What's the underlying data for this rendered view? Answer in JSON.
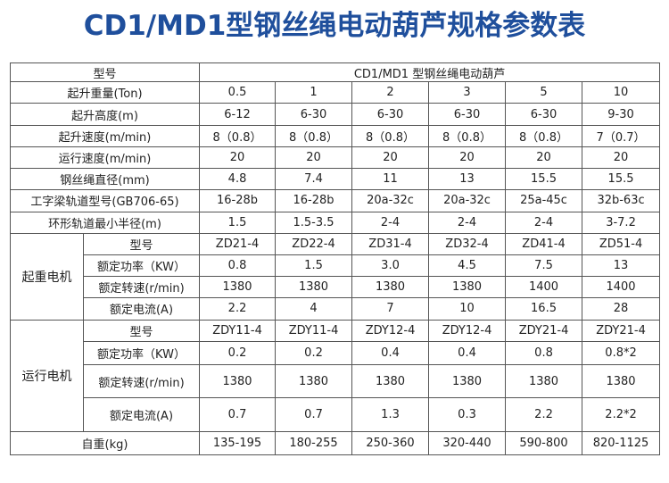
{
  "title": "CD1/MD1型钢丝绳电动葫芦规格参数表",
  "header": {
    "label": "型号",
    "product": "CD1/MD1 型钢丝绳电动葫芦"
  },
  "general_rows": [
    {
      "label": "起升重量(Ton)",
      "values": [
        "0.5",
        "1",
        "2",
        "3",
        "5",
        "10"
      ]
    },
    {
      "label": "起升高度(m)",
      "values": [
        "6-12",
        "6-30",
        "6-30",
        "6-30",
        "6-30",
        "9-30"
      ]
    },
    {
      "label": "起升速度(m/min)",
      "values": [
        "8（0.8）",
        "8（0.8）",
        "8（0.8）",
        "8（0.8）",
        "8（0.8）",
        "7（0.7）"
      ]
    },
    {
      "label": "运行速度(m/min)",
      "values": [
        "20",
        "20",
        "20",
        "20",
        "20",
        "20"
      ]
    },
    {
      "label": "钢丝绳直径(mm)",
      "values": [
        "4.8",
        "7.4",
        "11",
        "13",
        "15.5",
        "15.5"
      ]
    },
    {
      "label": "工字梁轨道型号(GB706-65)",
      "values": [
        "16-28b",
        "16-28b",
        "20a-32c",
        "20a-32c",
        "25a-45c",
        "32b-63c"
      ]
    },
    {
      "label": "环形轨道最小半径(m)",
      "values": [
        "1.5",
        "1.5-3.5",
        "2-4",
        "2-4",
        "2-4",
        "3-7.2"
      ]
    }
  ],
  "lift_motor": {
    "group": "起重电机",
    "rows": [
      {
        "label": "型号",
        "values": [
          "ZD21-4",
          "ZD22-4",
          "ZD31-4",
          "ZD32-4",
          "ZD41-4",
          "ZD51-4"
        ]
      },
      {
        "label": "额定功率（KW）",
        "values": [
          "0.8",
          "1.5",
          "3.0",
          "4.5",
          "7.5",
          "13"
        ]
      },
      {
        "label": "额定转速(r/min)",
        "values": [
          "1380",
          "1380",
          "1380",
          "1380",
          "1400",
          "1400"
        ]
      },
      {
        "label": "额定电流(A)",
        "values": [
          "2.2",
          "4",
          "7",
          "10",
          "16.5",
          "28"
        ]
      }
    ]
  },
  "travel_motor": {
    "group": "运行电机",
    "rows": [
      {
        "label": "型号",
        "values": [
          "ZDY11-4",
          "ZDY11-4",
          "ZDY12-4",
          "ZDY12-4",
          "ZDY21-4",
          "ZDY21-4"
        ]
      },
      {
        "label": "额定功率（KW）",
        "values": [
          "0.2",
          "0.2",
          "0.4",
          "0.4",
          "0.8",
          "0.8*2"
        ]
      },
      {
        "label": "额定转速(r/min)",
        "values": [
          "1380",
          "1380",
          "1380",
          "1380",
          "1380",
          "1380"
        ]
      },
      {
        "label": "额定电流(A)",
        "values": [
          "0.7",
          "0.7",
          "1.3",
          "0.3",
          "2.2",
          "2.2*2"
        ]
      }
    ]
  },
  "weight_row": {
    "label": "自重(kg)",
    "values": [
      "135-195",
      "180-255",
      "250-360",
      "320-440",
      "590-800",
      "820-1125"
    ]
  }
}
